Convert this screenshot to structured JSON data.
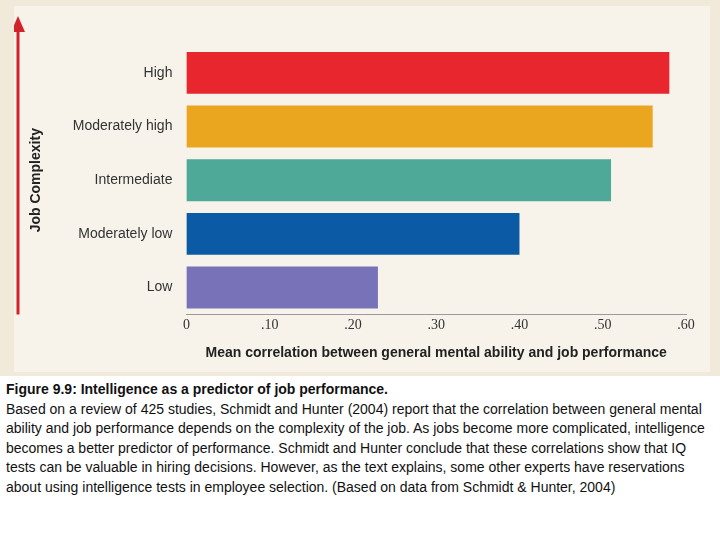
{
  "chart_data": {
    "type": "bar",
    "orientation": "horizontal",
    "y_label": "Job Complexity",
    "x_label": "Mean correlation between general mental ability and job performance",
    "categories": [
      "High",
      "Moderately high",
      "Intermediate",
      "Moderately low",
      "Low"
    ],
    "values": [
      0.58,
      0.56,
      0.51,
      0.4,
      0.23
    ],
    "colors": [
      "#e8262e",
      "#eaa61f",
      "#4ea999",
      "#0b5aa5",
      "#7872b8"
    ],
    "xlim": [
      0,
      0.6
    ],
    "xticks": [
      0,
      {
        "value": 0.1,
        "label": ".10"
      },
      {
        "value": 0.2,
        "label": ".20"
      },
      {
        "value": 0.3,
        "label": ".30"
      },
      {
        "value": 0.4,
        "label": ".40"
      },
      {
        "value": 0.5,
        "label": ".50"
      },
      {
        "value": 0.6,
        "label": ".60"
      }
    ],
    "grid": false
  },
  "caption": {
    "title": "Figure 9.9: Intelligence as a predictor of job performance.",
    "text": "Based on a review of 425 studies, Schmidt and Hunter (2004) report that the correlation between general mental ability and job performance depends on the complexity of the job. As jobs become more complicated, intelligence becomes a better predictor of performance. Schmidt and Hunter conclude that these correlations show that IQ tests can be valuable in hiring decisions. However, as the text explains, some other experts have reservations about using intelligence tests in employee selection. (Based on data from Schmidt & Hunter, 2004)"
  }
}
